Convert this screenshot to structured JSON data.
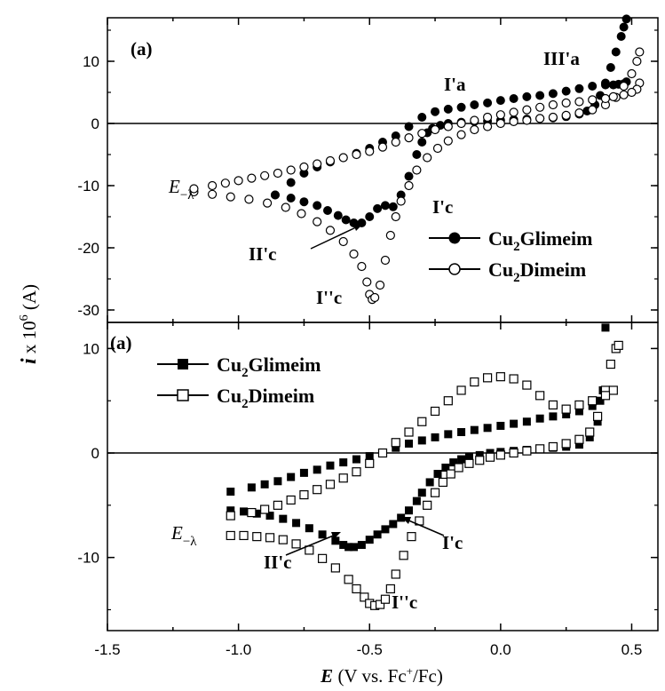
{
  "chart_data": [
    {
      "type": "scatter",
      "panel_label": "(a)",
      "xlim": [
        -1.5,
        0.6
      ],
      "ylim": [
        -32,
        17
      ],
      "yticks": [
        -30,
        -20,
        -10,
        0,
        10
      ],
      "grid": false,
      "legend_position": "right",
      "series": [
        {
          "name": "Cu2Glimeim",
          "name_base": "Cu",
          "name_sub": "2",
          "name_rest": "Glimeim",
          "marker": "filled-circle",
          "x": [
            -0.86,
            -0.8,
            -0.75,
            -0.7,
            -0.66,
            -0.62,
            -0.59,
            -0.56,
            -0.53,
            -0.5,
            -0.47,
            -0.44,
            -0.41,
            -0.38,
            -0.35,
            -0.32,
            -0.3,
            -0.28,
            -0.26,
            -0.23,
            -0.2,
            -0.15,
            -0.1,
            -0.05,
            0.0,
            0.05,
            0.1,
            0.15,
            0.2,
            0.25,
            0.3,
            0.33,
            0.36,
            0.38,
            0.4,
            0.42,
            0.44,
            0.46,
            0.47,
            0.48,
            0.48,
            0.47,
            0.45,
            0.43,
            0.4,
            0.35,
            0.3,
            0.25,
            0.2,
            0.15,
            0.1,
            0.05,
            0.0,
            -0.05,
            -0.1,
            -0.15,
            -0.2,
            -0.25,
            -0.3,
            -0.35,
            -0.4,
            -0.45,
            -0.5,
            -0.55,
            -0.6,
            -0.65,
            -0.7,
            -0.75,
            -0.8,
            -0.86
          ],
          "y": [
            -11.5,
            -12.0,
            -12.6,
            -13.2,
            -14.0,
            -14.8,
            -15.5,
            -16.0,
            -16.0,
            -15.0,
            -13.7,
            -13.2,
            -13.4,
            -11.5,
            -8.5,
            -5.0,
            -3.0,
            -1.5,
            -0.8,
            -0.3,
            0.0,
            0.2,
            0.3,
            0.4,
            0.5,
            0.6,
            0.7,
            0.8,
            0.9,
            1.1,
            1.5,
            2.0,
            3.0,
            4.5,
            6.5,
            9.0,
            11.5,
            14.0,
            15.5,
            16.8,
            6.7,
            6.4,
            6.3,
            6.2,
            6.2,
            6.0,
            5.6,
            5.2,
            4.8,
            4.5,
            4.3,
            4.0,
            3.7,
            3.3,
            3.0,
            2.6,
            2.3,
            1.9,
            1.0,
            -0.5,
            -2.0,
            -3.0,
            -4.0,
            -4.8,
            -5.5,
            -6.2,
            -7.0,
            -8.0,
            -9.5,
            -11.5
          ]
        },
        {
          "name": "Cu2Dimeim",
          "name_base": "Cu",
          "name_sub": "2",
          "name_rest": "Dimeim",
          "marker": "open-circle",
          "x": [
            -1.17,
            -1.1,
            -1.03,
            -0.96,
            -0.89,
            -0.82,
            -0.76,
            -0.7,
            -0.65,
            -0.6,
            -0.56,
            -0.53,
            -0.51,
            -0.5,
            -0.49,
            -0.48,
            -0.46,
            -0.44,
            -0.42,
            -0.4,
            -0.38,
            -0.35,
            -0.32,
            -0.28,
            -0.24,
            -0.2,
            -0.15,
            -0.1,
            -0.05,
            0.0,
            0.05,
            0.1,
            0.15,
            0.2,
            0.25,
            0.3,
            0.35,
            0.4,
            0.44,
            0.47,
            0.5,
            0.52,
            0.53,
            0.53,
            0.52,
            0.5,
            0.47,
            0.43,
            0.4,
            0.35,
            0.3,
            0.25,
            0.2,
            0.15,
            0.1,
            0.05,
            0.0,
            -0.05,
            -0.1,
            -0.15,
            -0.2,
            -0.25,
            -0.3,
            -0.35,
            -0.4,
            -0.45,
            -0.5,
            -0.55,
            -0.6,
            -0.65,
            -0.7,
            -0.75,
            -0.8,
            -0.85,
            -0.9,
            -0.95,
            -1.0,
            -1.05,
            -1.1,
            -1.17
          ],
          "y": [
            -11.0,
            -11.4,
            -11.8,
            -12.2,
            -12.8,
            -13.5,
            -14.5,
            -15.8,
            -17.2,
            -19.0,
            -21.0,
            -23.0,
            -25.5,
            -27.5,
            -28.3,
            -28.0,
            -26.0,
            -22.0,
            -18.0,
            -15.0,
            -12.5,
            -10.0,
            -7.5,
            -5.5,
            -4.0,
            -2.8,
            -1.8,
            -1.0,
            -0.5,
            0.0,
            0.3,
            0.5,
            0.8,
            1.0,
            1.3,
            1.7,
            2.2,
            3.0,
            4.2,
            6.0,
            8.0,
            10.0,
            11.5,
            6.5,
            5.5,
            5.0,
            4.6,
            4.3,
            4.0,
            3.8,
            3.5,
            3.3,
            3.0,
            2.6,
            2.2,
            1.8,
            1.4,
            1.0,
            0.5,
            0.0,
            -0.5,
            -1.0,
            -1.6,
            -2.3,
            -3.0,
            -3.8,
            -4.5,
            -5.0,
            -5.5,
            -6.0,
            -6.5,
            -7.0,
            -7.5,
            -8.0,
            -8.4,
            -8.8,
            -9.2,
            -9.6,
            -10.0,
            -10.5
          ]
        }
      ]
    },
    {
      "type": "scatter",
      "panel_label": "(a)",
      "xlim": [
        -1.5,
        0.6
      ],
      "ylim": [
        -17,
        12.5
      ],
      "yticks": [
        -10,
        0,
        10
      ],
      "xticks": [
        -1.5,
        -1.0,
        -0.5,
        0.0,
        0.5
      ],
      "xtick_labels": [
        "-1.5",
        "-1.0",
        "-0.5",
        "0.0",
        "0.5"
      ],
      "grid": false,
      "legend_position": "top-left",
      "series": [
        {
          "name": "Cu2Glimeim",
          "name_base": "Cu",
          "name_sub": "2",
          "name_rest": "Glimeim",
          "marker": "filled-square",
          "x": [
            -1.03,
            -0.98,
            -0.93,
            -0.88,
            -0.83,
            -0.78,
            -0.73,
            -0.68,
            -0.63,
            -0.6,
            -0.58,
            -0.56,
            -0.53,
            -0.5,
            -0.47,
            -0.44,
            -0.41,
            -0.38,
            -0.35,
            -0.32,
            -0.3,
            -0.27,
            -0.24,
            -0.21,
            -0.18,
            -0.15,
            -0.12,
            -0.08,
            -0.04,
            0.0,
            0.05,
            0.1,
            0.15,
            0.2,
            0.25,
            0.3,
            0.34,
            0.37,
            0.39,
            0.4,
            0.4,
            0.38,
            0.35,
            0.3,
            0.25,
            0.2,
            0.15,
            0.1,
            0.05,
            0.0,
            -0.05,
            -0.1,
            -0.15,
            -0.2,
            -0.25,
            -0.3,
            -0.35,
            -0.4,
            -0.45,
            -0.5,
            -0.55,
            -0.6,
            -0.65,
            -0.7,
            -0.75,
            -0.8,
            -0.85,
            -0.9,
            -0.95,
            -1.03
          ],
          "y": [
            -5.5,
            -5.6,
            -5.8,
            -6.0,
            -6.3,
            -6.7,
            -7.2,
            -7.8,
            -8.4,
            -8.8,
            -9.0,
            -9.0,
            -8.8,
            -8.3,
            -7.8,
            -7.3,
            -6.8,
            -6.2,
            -5.5,
            -4.6,
            -3.8,
            -2.8,
            -2.0,
            -1.4,
            -0.9,
            -0.6,
            -0.4,
            -0.2,
            0.0,
            0.1,
            0.2,
            0.3,
            0.4,
            0.5,
            0.6,
            0.8,
            1.5,
            3.0,
            6.0,
            12.0,
            5.5,
            5.0,
            4.5,
            4.0,
            3.7,
            3.5,
            3.3,
            3.0,
            2.8,
            2.6,
            2.4,
            2.2,
            2.0,
            1.8,
            1.5,
            1.2,
            0.9,
            0.5,
            0.0,
            -0.3,
            -0.6,
            -0.9,
            -1.2,
            -1.6,
            -1.9,
            -2.3,
            -2.7,
            -3.0,
            -3.3,
            -3.7
          ]
        },
        {
          "name": "Cu2Dimeim",
          "name_base": "Cu",
          "name_sub": "2",
          "name_rest": "Dimeim",
          "marker": "open-square",
          "x": [
            -1.03,
            -0.98,
            -0.93,
            -0.88,
            -0.83,
            -0.78,
            -0.73,
            -0.68,
            -0.63,
            -0.58,
            -0.55,
            -0.52,
            -0.5,
            -0.48,
            -0.46,
            -0.44,
            -0.42,
            -0.4,
            -0.37,
            -0.34,
            -0.31,
            -0.28,
            -0.25,
            -0.22,
            -0.19,
            -0.16,
            -0.12,
            -0.08,
            -0.04,
            0.0,
            0.05,
            0.1,
            0.15,
            0.2,
            0.25,
            0.3,
            0.34,
            0.37,
            0.4,
            0.42,
            0.44,
            0.45,
            0.43,
            0.4,
            0.35,
            0.3,
            0.25,
            0.2,
            0.15,
            0.1,
            0.05,
            0.0,
            -0.05,
            -0.1,
            -0.15,
            -0.2,
            -0.25,
            -0.3,
            -0.35,
            -0.4,
            -0.45,
            -0.5,
            -0.55,
            -0.6,
            -0.65,
            -0.7,
            -0.75,
            -0.8,
            -0.85,
            -0.9,
            -0.95,
            -1.03
          ],
          "y": [
            -7.9,
            -7.9,
            -8.0,
            -8.1,
            -8.3,
            -8.7,
            -9.3,
            -10.1,
            -11.0,
            -12.1,
            -13.0,
            -13.8,
            -14.4,
            -14.6,
            -14.5,
            -14.0,
            -13.0,
            -11.6,
            -9.8,
            -8.0,
            -6.5,
            -5.0,
            -3.8,
            -2.8,
            -2.0,
            -1.4,
            -1.0,
            -0.7,
            -0.4,
            -0.2,
            0.0,
            0.2,
            0.4,
            0.6,
            0.9,
            1.3,
            2.0,
            3.5,
            6.0,
            8.5,
            10.0,
            10.3,
            6.0,
            5.5,
            5.0,
            4.6,
            4.2,
            4.6,
            5.5,
            6.5,
            7.1,
            7.3,
            7.2,
            6.8,
            6.0,
            5.0,
            4.0,
            3.0,
            2.0,
            1.0,
            0.0,
            -1.0,
            -1.8,
            -2.4,
            -3.0,
            -3.5,
            -4.0,
            -4.5,
            -5.0,
            -5.4,
            -5.7,
            -6.0
          ]
        }
      ]
    }
  ],
  "annotations_top": {
    "i_a": "I'a",
    "iii_a": "III'a",
    "i_c": "I'c",
    "ii_c": "II'c",
    "ipp_c": "I''c",
    "e_lambda_main": "E",
    "e_lambda_sub": "−λ"
  },
  "annotations_bottom": {
    "ii_c": "II'c",
    "i_c": "I'c",
    "ipp_c": "I''c",
    "e_lambda_main": "E",
    "e_lambda_sub": "−λ"
  },
  "axes": {
    "y_label_main": "i",
    "y_label_mid": " x 10",
    "y_label_exp": "6",
    "y_label_unit": " (A)",
    "x_label_main": "E",
    "x_label_pre": " (V vs. Fc",
    "x_label_sup": "+",
    "x_label_post": "/Fc)"
  }
}
